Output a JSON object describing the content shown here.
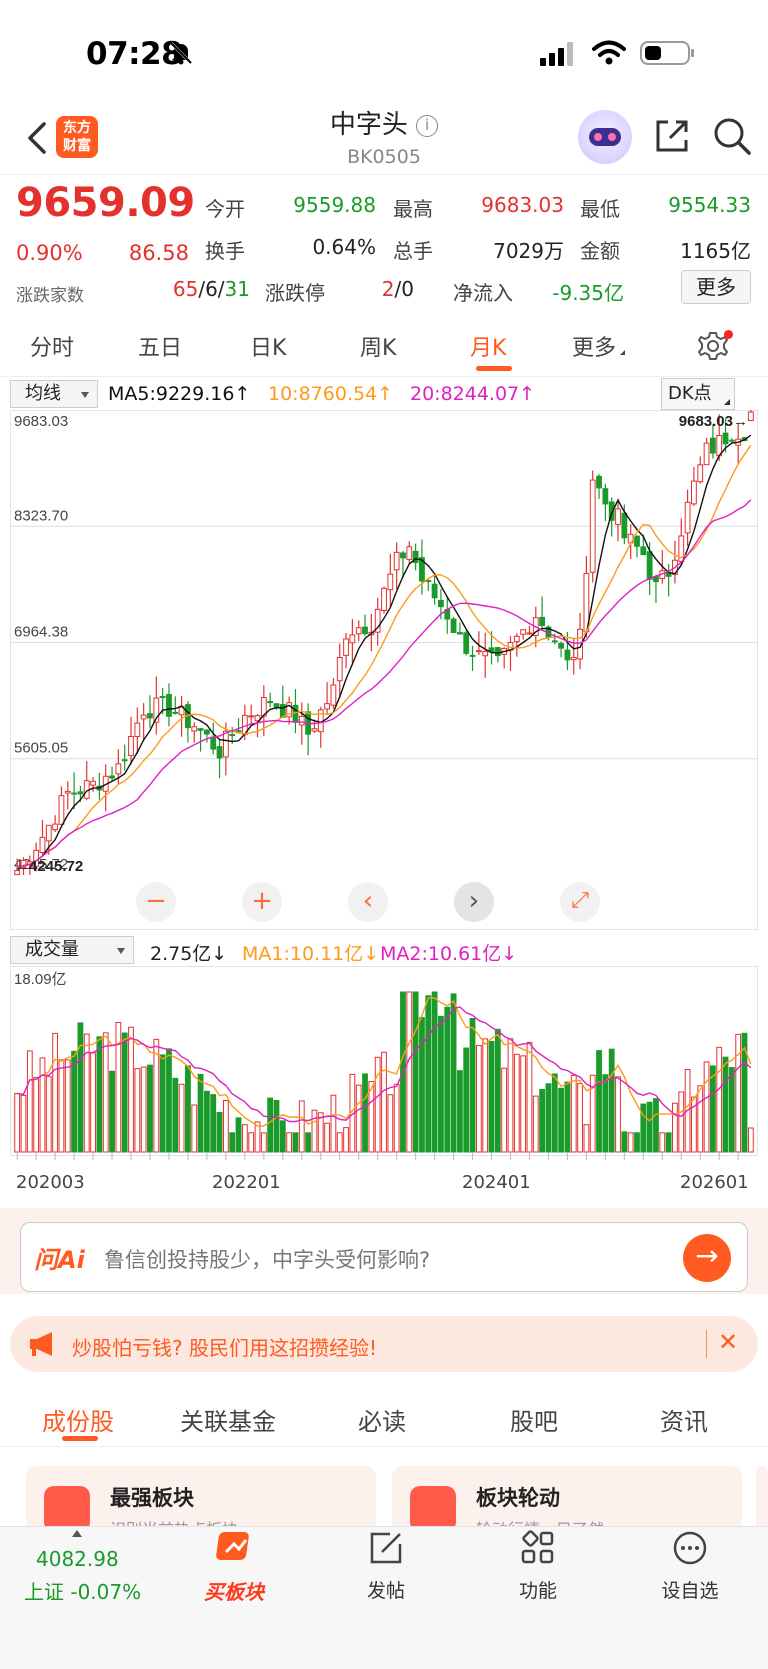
{
  "status_bar": {
    "time": "07:28"
  },
  "header": {
    "title": "中字头",
    "code": "BK0505",
    "logo_line1": "东方",
    "logo_line2": "财富"
  },
  "quote": {
    "price": "9659.09",
    "change_pct": "0.90%",
    "change": "86.58",
    "open_label": "今开",
    "open": "9559.88",
    "high_label": "最高",
    "high": "9683.03",
    "low_label": "最低",
    "low": "9554.33",
    "turnover_label": "换手",
    "turnover": "0.64%",
    "volume_label": "总手",
    "volume": "7029万",
    "amount_label": "金额",
    "amount": "1165亿",
    "adv_label": "涨跌家数",
    "adv_up": "65",
    "adv_flat": "6",
    "adv_down": "31",
    "limit_label": "涨跌停",
    "limit_up": "2",
    "limit_down": "0",
    "netflow_label": "净流入",
    "netflow": "-9.35亿",
    "more_label": "更多"
  },
  "period_tabs": [
    {
      "label": "分时"
    },
    {
      "label": "五日"
    },
    {
      "label": "日K"
    },
    {
      "label": "周K"
    },
    {
      "label": "月K"
    },
    {
      "label": "更多"
    }
  ],
  "ma_row": {
    "dropdown": "均线",
    "ma5": "MA5:9229.16↑",
    "ma10": "10:8760.54↑",
    "ma20": "20:8244.07↑",
    "dk_label": "DK点"
  },
  "volume_row": {
    "dropdown": "成交量",
    "vol": "2.75亿↓",
    "ma1": "MA1:10.11亿↓",
    "ma2": "MA2:10.61亿↓"
  },
  "chart_data": {
    "type": "candlestick",
    "y_ticks": [
      "9683.03",
      "8323.70",
      "6964.38",
      "5605.05",
      "4245.72"
    ],
    "ylim": [
      4245.72,
      9683.03
    ],
    "high_marker": "9683.03→",
    "low_marker": "←4245.72",
    "x_labels": [
      "202003",
      "202201",
      "202401",
      "202601"
    ],
    "volume_max_label": "18.09亿",
    "colors": {
      "up": "#e3322e",
      "down": "#1a9a2a",
      "ma5": "#111111",
      "ma10": "#ff9a1a",
      "ma20": "#e020c0"
    }
  },
  "chart_controls": {
    "zoom_out": "−",
    "zoom_in": "+",
    "prev": "‹",
    "next": "›",
    "expand": "⤢"
  },
  "ask_ai": {
    "logo": "问Ai",
    "placeholder": "鲁信创投持股少，中字头受何影响?"
  },
  "promo": {
    "text": "炒股怕亏钱? 股民们用这招攒经验!"
  },
  "bottom_tabs": [
    {
      "label": "成份股"
    },
    {
      "label": "关联基金"
    },
    {
      "label": "必读"
    },
    {
      "label": "股吧"
    },
    {
      "label": "资讯"
    }
  ],
  "cards": [
    {
      "title": "最强板块",
      "sub": "识别当前热点板块"
    },
    {
      "title": "板块轮动",
      "sub": "轮动行情一目了然"
    }
  ],
  "bottom_bar": {
    "index_value": "4082.98",
    "index_label": "上证 -0.07%",
    "buy_label": "买板块",
    "post_label": "发帖",
    "func_label": "功能",
    "watch_label": "设自选"
  }
}
